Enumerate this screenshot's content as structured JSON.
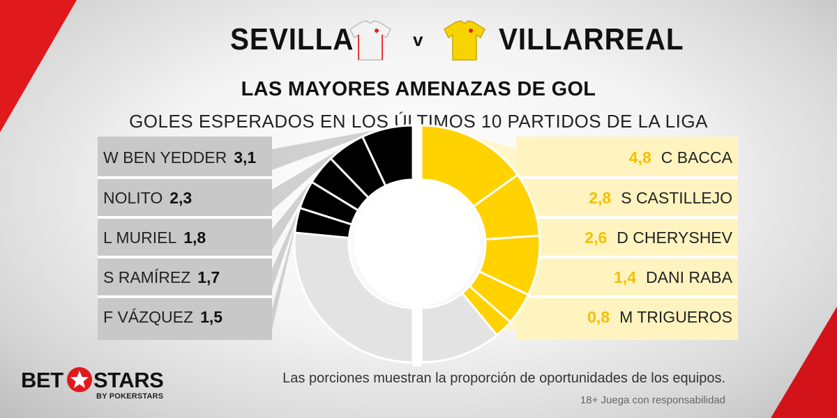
{
  "header": {
    "home_team": "SEVILLA",
    "versus": "v",
    "away_team": "VILLARREAL"
  },
  "icons": {
    "home_shirt": "white-shirt-icon",
    "away_shirt": "yellow-shirt-icon"
  },
  "colors": {
    "home_slice": "#000000",
    "home_other": "#e3e3e3",
    "away_slice": "#ffd200",
    "away_other": "#e3e3e3",
    "away_value_text": "#f5bf00",
    "home_panel": "#c8c8c8",
    "away_panel": "#fff4c0",
    "brand_red": "#e0191d"
  },
  "chart_data": {
    "type": "pie",
    "title": "LAS MAYORES AMENAZAS DE GOL",
    "subtitle": "GOLES ESPERADOS EN LOS ÚLTIMOS 10 PARTIDOS DE LA LIGA",
    "series": [
      {
        "name": "SEVILLA",
        "players": [
          {
            "name": "W BEN YEDDER",
            "value_label": "3,1",
            "value": 3.1
          },
          {
            "name": "NOLITO",
            "value_label": "2,3",
            "value": 2.3
          },
          {
            "name": "L MURIEL",
            "value_label": "1,8",
            "value": 1.8
          },
          {
            "name": "S RAMÍREZ",
            "value_label": "1,7",
            "value": 1.7
          },
          {
            "name": "F VÁZQUEZ",
            "value_label": "1,5",
            "value": 1.5
          }
        ],
        "share_of_chances": 0.47
      },
      {
        "name": "VILLARREAL",
        "players": [
          {
            "name": "C BACCA",
            "value_label": "4,8",
            "value": 4.8
          },
          {
            "name": "S CASTILLEJO",
            "value_label": "2,8",
            "value": 2.8
          },
          {
            "name": "D CHERYSHEV",
            "value_label": "2,6",
            "value": 2.6
          },
          {
            "name": "DANI RABA",
            "value_label": "1,4",
            "value": 1.4
          },
          {
            "name": "M TRIGUEROS",
            "value_label": "0,8",
            "value": 0.8
          }
        ],
        "share_of_chances": 0.78
      }
    ]
  },
  "footer": {
    "note": "Las porciones muestran la proporción de oportunidades de los equipos.",
    "disclaimer": "18+ Juega con responsabilidad"
  },
  "logo": {
    "bet": "BET",
    "stars": "STARS",
    "sub": "BY POKERSTARS",
    "icon": "star-icon"
  }
}
